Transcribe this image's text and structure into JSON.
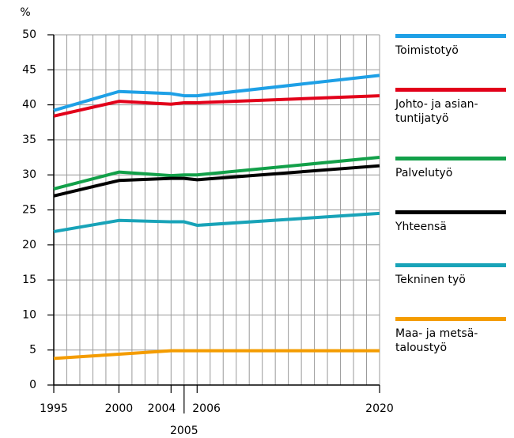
{
  "chart_data": {
    "type": "line",
    "y_label": "%",
    "x": [
      1995,
      2000,
      2004,
      2005,
      2006,
      2020
    ],
    "xlim": [
      1995,
      2020
    ],
    "xticks": [
      1995,
      2000,
      2004,
      2005,
      2006,
      2020
    ],
    "xgrid_every": 1,
    "ylim": [
      0,
      50
    ],
    "yticks": [
      0,
      5,
      10,
      15,
      20,
      25,
      30,
      35,
      40,
      45,
      50
    ],
    "grid": true,
    "legend": "right",
    "series": [
      {
        "name": "Toimistotyö",
        "color": "#1ea0e6",
        "values": [
          39.2,
          41.9,
          41.6,
          41.3,
          41.3,
          44.2
        ]
      },
      {
        "name": "Johto- ja asian-\ntuntijatyö",
        "color": "#e2001a",
        "values": [
          38.4,
          40.5,
          40.1,
          40.3,
          40.3,
          41.3
        ]
      },
      {
        "name": "Palvelutyö",
        "color": "#12a049",
        "values": [
          28.0,
          30.4,
          29.9,
          30.0,
          30.0,
          32.5
        ]
      },
      {
        "name": "Yhteensä",
        "color": "#000000",
        "values": [
          27.0,
          29.2,
          29.5,
          29.5,
          29.3,
          31.3
        ]
      },
      {
        "name": "Tekninen työ",
        "color": "#18a3b8",
        "values": [
          21.9,
          23.5,
          23.3,
          23.3,
          22.8,
          24.5
        ]
      },
      {
        "name": "Maa- ja metsä-\ntaloustyö",
        "color": "#f49c00",
        "values": [
          3.8,
          4.4,
          4.9,
          4.9,
          4.9,
          4.9
        ]
      }
    ]
  }
}
